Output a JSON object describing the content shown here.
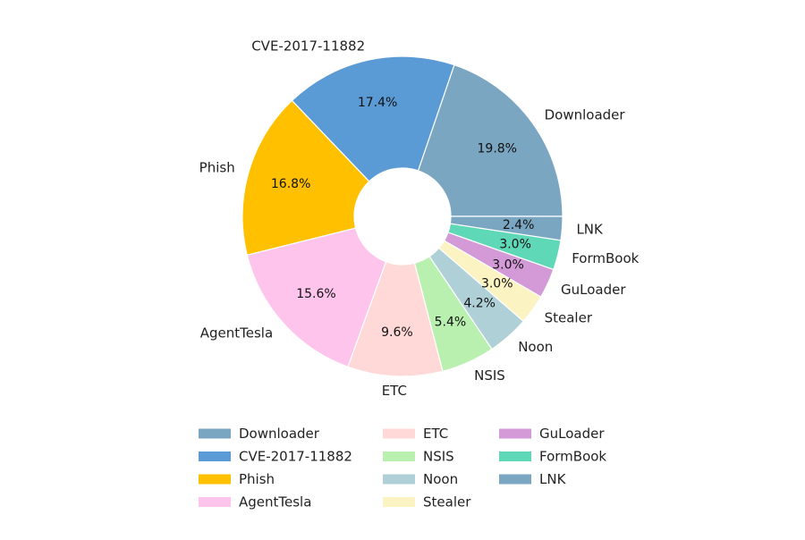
{
  "chart_data": {
    "type": "pie",
    "donut": true,
    "title": "",
    "categories": [
      "Downloader",
      "CVE-2017-11882",
      "Phish",
      "AgentTesla",
      "ETC",
      "NSIS",
      "Noon",
      "Stealer",
      "GuLoader",
      "FormBook",
      "LNK"
    ],
    "values": [
      19.8,
      17.4,
      16.8,
      15.6,
      9.6,
      5.4,
      4.2,
      3.0,
      3.0,
      3.0,
      2.4
    ],
    "value_labels": [
      "19.8%",
      "17.4%",
      "16.8%",
      "15.6%",
      "9.6%",
      "5.4%",
      "4.2%",
      "3.0%",
      "3.0%",
      "3.0%",
      "2.4%"
    ],
    "colors": [
      "#7aa6c2",
      "#5b9bd5",
      "#ffc000",
      "#ffc4ec",
      "#ffd8d8",
      "#b9f0b0",
      "#b0d0d8",
      "#fbf3c1",
      "#d49ad8",
      "#5fd8b8",
      "#7aa6c2"
    ],
    "legend": {
      "placement": "bottom",
      "columns": 3
    }
  }
}
